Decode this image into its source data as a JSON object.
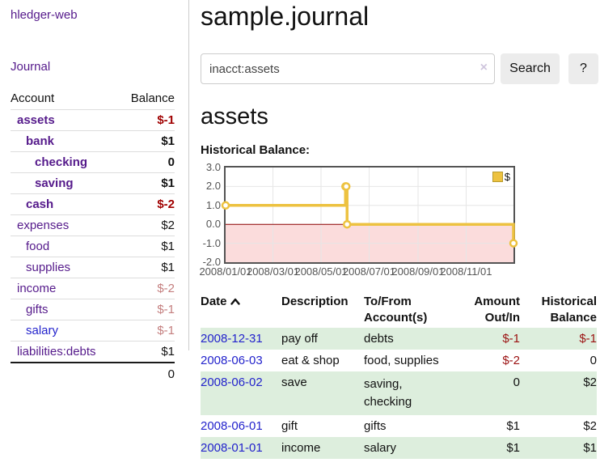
{
  "app": {
    "title": "hledger-web"
  },
  "sidebar": {
    "journal_link": "Journal",
    "table": {
      "account_header": "Account",
      "balance_header": "Balance",
      "rows": [
        {
          "account": "assets",
          "balance": "$-1",
          "indent": 1,
          "bold": true,
          "balance_class": "neg-strong",
          "link_color": "purple"
        },
        {
          "account": "bank",
          "balance": "$1",
          "indent": 2,
          "bold": true,
          "balance_class": "pos",
          "link_color": "purple"
        },
        {
          "account": "checking",
          "balance": "0",
          "indent": 3,
          "bold": true,
          "balance_class": "pos",
          "link_color": "purple"
        },
        {
          "account": "saving",
          "balance": "$1",
          "indent": 3,
          "bold": true,
          "balance_class": "pos",
          "link_color": "purple"
        },
        {
          "account": "cash",
          "balance": "$-2",
          "indent": 2,
          "bold": true,
          "balance_class": "neg-strong",
          "link_color": "purple"
        },
        {
          "account": "expenses",
          "balance": "$2",
          "indent": 1,
          "bold": false,
          "balance_class": "pos",
          "link_color": "purple"
        },
        {
          "account": "food",
          "balance": "$1",
          "indent": 2,
          "bold": false,
          "balance_class": "pos",
          "link_color": "purple"
        },
        {
          "account": "supplies",
          "balance": "$1",
          "indent": 2,
          "bold": false,
          "balance_class": "pos",
          "link_color": "purple"
        },
        {
          "account": "income",
          "balance": "$-2",
          "indent": 1,
          "bold": false,
          "balance_class": "neg-soft",
          "link_color": "purple"
        },
        {
          "account": "gifts",
          "balance": "$-1",
          "indent": 2,
          "bold": false,
          "balance_class": "neg-soft",
          "link_color": "purple"
        },
        {
          "account": "salary",
          "balance": "$-1",
          "indent": 2,
          "bold": false,
          "balance_class": "neg-soft",
          "link_color": "blue"
        },
        {
          "account": "liabilities:debts",
          "balance": "$1",
          "indent": 1,
          "bold": false,
          "balance_class": "pos",
          "link_color": "purple"
        }
      ],
      "total": "0"
    }
  },
  "main": {
    "title": "sample.journal",
    "search": {
      "value": "inacct:assets",
      "clear_icon": "×",
      "button": "Search",
      "help_button": "?"
    },
    "section_title": "assets",
    "chart_label": "Historical Balance:"
  },
  "chart_data": {
    "type": "line",
    "step": true,
    "title": "Historical Balance:",
    "series": [
      {
        "name": "$",
        "color": "#edc240",
        "points": [
          {
            "date": "2008-01-01",
            "day": 0,
            "value": 1
          },
          {
            "date": "2008-06-01",
            "day": 152,
            "value": 2
          },
          {
            "date": "2008-06-02",
            "day": 153,
            "value": 2
          },
          {
            "date": "2008-06-03",
            "day": 154,
            "value": 0
          },
          {
            "date": "2008-12-31",
            "day": 365,
            "value": -1
          }
        ]
      }
    ],
    "x_ticks": [
      {
        "label": "2008/01/01",
        "day": 0
      },
      {
        "label": "2008/03/01",
        "day": 60
      },
      {
        "label": "2008/05/01",
        "day": 121
      },
      {
        "label": "2008/07/01",
        "day": 182
      },
      {
        "label": "2008/09/01",
        "day": 244
      },
      {
        "label": "2008/11/01",
        "day": 305
      }
    ],
    "x_range_days": [
      0,
      365
    ],
    "y_ticks": [
      "3.0",
      "2.0",
      "1.0",
      "0.0",
      "-1.0",
      "-2.0"
    ],
    "ylim": [
      -2,
      3
    ],
    "legend": {
      "label": "$",
      "position": "top-right"
    },
    "grid": true,
    "colors": {
      "line": "#edc240",
      "grid": "#e6e6e6",
      "border": "#545454",
      "zero_line": "#8b0000",
      "negative_fill": "#fbdcdc"
    }
  },
  "register": {
    "headers": {
      "date": "Date",
      "sort_icon": "chevron-up",
      "description": "Description",
      "tofrom": "To/From Account(s)",
      "amount": "Amount Out/In",
      "balance": "Historical Balance"
    },
    "rows": [
      {
        "date": "2008-12-31",
        "description": "pay off",
        "accounts_lines": [
          "debts"
        ],
        "amount": "$-1",
        "amount_neg": true,
        "balance": "$-1",
        "balance_neg": true,
        "green": true
      },
      {
        "date": "2008-06-03",
        "description": "eat & shop",
        "accounts_lines": [
          "food, supplies"
        ],
        "amount": "$-2",
        "amount_neg": true,
        "balance": "0",
        "balance_neg": false,
        "green": false
      },
      {
        "date": "2008-06-02",
        "description": "save",
        "accounts_lines": [
          "saving,",
          "checking"
        ],
        "amount": "0",
        "amount_neg": false,
        "balance": "$2",
        "balance_neg": false,
        "green": true
      },
      {
        "date": "2008-06-01",
        "description": "gift",
        "accounts_lines": [
          "gifts"
        ],
        "amount": "$1",
        "amount_neg": false,
        "balance": "$2",
        "balance_neg": false,
        "green": false
      },
      {
        "date": "2008-01-01",
        "description": "income",
        "accounts_lines": [
          "salary"
        ],
        "amount": "$1",
        "amount_neg": false,
        "balance": "$1",
        "balance_neg": false,
        "green": true
      }
    ]
  },
  "colors": {
    "link_purple": "#551a8b",
    "link_blue": "#2323cc",
    "negative_strong": "#a00000",
    "negative_soft": "#c47e7e",
    "row_green": "#ddeedd",
    "chart_gold": "#edc240"
  }
}
